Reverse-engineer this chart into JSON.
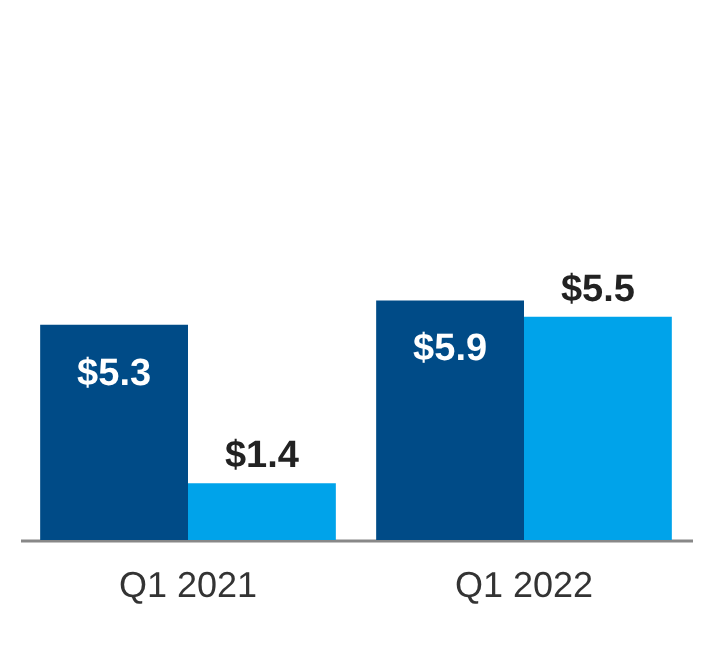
{
  "chart_data": {
    "type": "bar",
    "categories": [
      "Q1 2021",
      "Q1 2022"
    ],
    "series": [
      {
        "color": "#004b87",
        "values": [
          5.3,
          5.9
        ],
        "value_labels": [
          "$5.3",
          "$5.9"
        ]
      },
      {
        "color": "#00a3ea",
        "values": [
          1.4,
          5.5
        ],
        "value_labels": [
          "$1.4",
          "$5.5"
        ]
      }
    ],
    "tick_labels": "x"
  }
}
